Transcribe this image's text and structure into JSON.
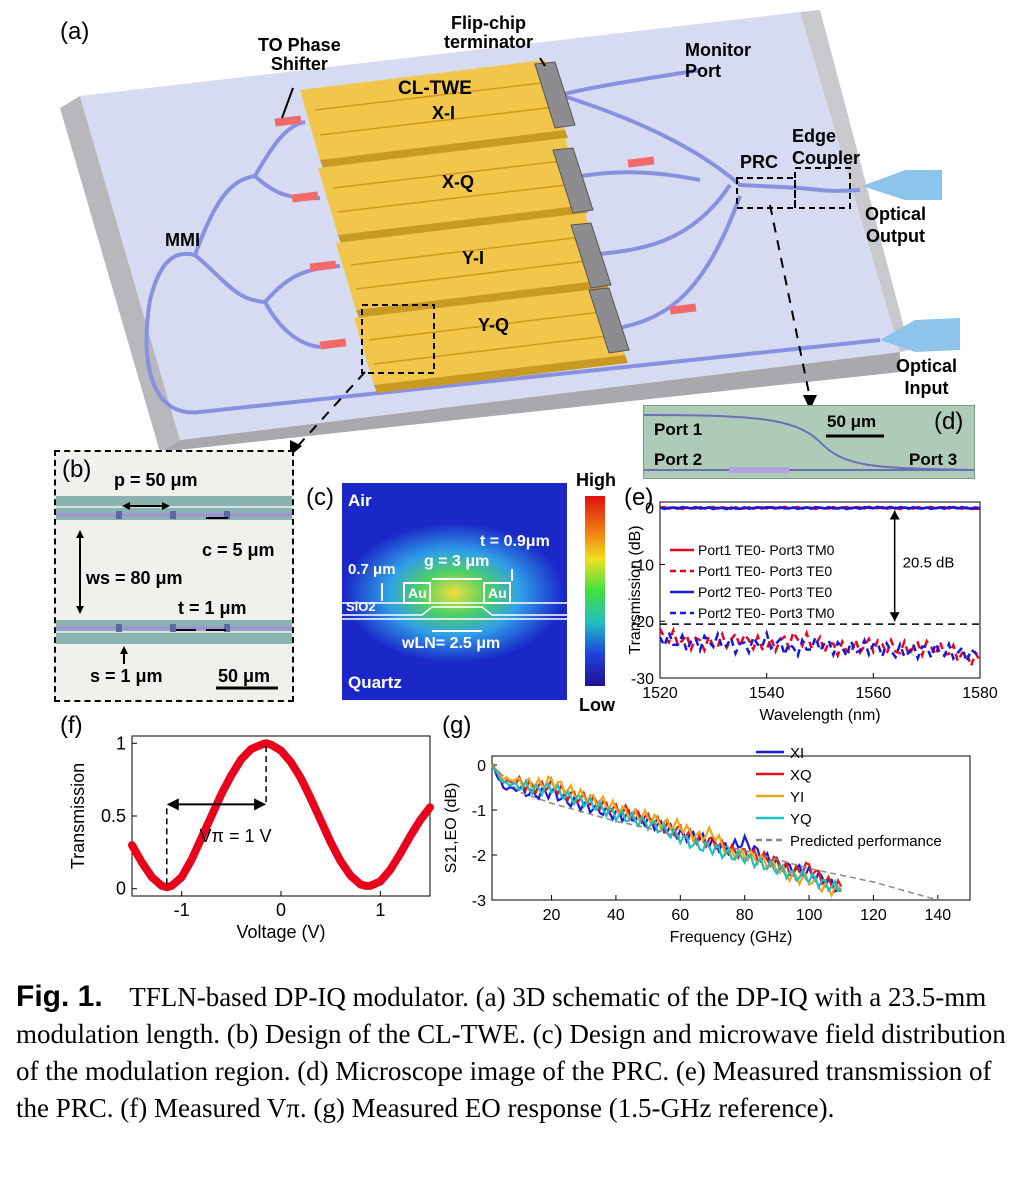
{
  "panel_a": {
    "label": "(a)",
    "to_phase_shifter": [
      "TO Phase",
      "Shifter"
    ],
    "flip_chip": [
      "Flip-chip",
      "terminator"
    ],
    "monitor_port": [
      "Monitor",
      "Port"
    ],
    "cl_twe": "CL-TWE",
    "mzm_labels": [
      "X-I",
      "X-Q",
      "Y-I",
      "Y-Q"
    ],
    "prc": "PRC",
    "edge_coupler": [
      "Edge",
      "Coupler"
    ],
    "optical_output": [
      "Optical",
      "Output"
    ],
    "optical_input": [
      "Optical",
      "Input"
    ],
    "mmi": "MMI"
  },
  "panel_b": {
    "label": "(b)",
    "p": "p = 50 μm",
    "c": "c = 5 μm",
    "ws": "ws = 80 μm",
    "t": "t = 1 μm",
    "s": "s = 1 μm",
    "scale": "50 μm"
  },
  "panel_c": {
    "label": "(c)",
    "air": "Air",
    "quartz": "Quartz",
    "sio2": "SiO2",
    "au": "Au",
    "dim_07": "0.7 μm",
    "g": "g = 3 μm",
    "t": "t = 0.9μm",
    "wln": "wLN= 2.5 μm",
    "high": "High",
    "low": "Low"
  },
  "panel_d": {
    "label": "(d)",
    "port1": "Port 1",
    "port2": "Port 2",
    "port3": "Port 3",
    "scale": "50 μm"
  },
  "panel_e": {
    "label": "(e)",
    "annotation": "20.5 dB"
  },
  "panel_f": {
    "label": "(f)",
    "annotation": "Vπ = 1 V"
  },
  "panel_g": {
    "label": "(g)"
  },
  "caption": {
    "fig": "Fig. 1.",
    "text": "TFLN-based DP-IQ modulator. (a) 3D schematic of the DP-IQ with a 23.5-mm modulation length. (b) Design of the CL-TWE. (c) Design and microwave field distribution of the modulation region. (d) Microscope image of the PRC. (e) Measured transmission of the PRC. (f) Measured Vπ. (g) Measured EO response (1.5-GHz reference)."
  },
  "chart_data": [
    {
      "id": "e",
      "type": "line",
      "xlabel": "Wavelength (nm)",
      "ylabel": "Transmission (dB)",
      "xlim": [
        1520,
        1580
      ],
      "ylim": [
        -30,
        1
      ],
      "xticks": [
        1520,
        1540,
        1560,
        1580
      ],
      "yticks": [
        0,
        -10,
        -20,
        -30
      ],
      "legend": "center-left",
      "series": [
        {
          "name": "Port1 TE0- Port3 TM0",
          "color": "#e8001c",
          "dash": "solid",
          "level": 0.0,
          "x": [
            1520,
            1525,
            1530,
            1535,
            1540,
            1545,
            1550,
            1555,
            1560,
            1565,
            1570,
            1575,
            1580
          ],
          "values": [
            0.0,
            -0.1,
            0.0,
            -0.1,
            0.0,
            0.0,
            -0.1,
            0.0,
            0.0,
            -0.1,
            0.0,
            0.0,
            -0.2
          ]
        },
        {
          "name": "Port1 TE0- Port3 TE0",
          "color": "#e8001c",
          "dash": "dashed",
          "level": -23.5,
          "x": [
            1520,
            1525,
            1530,
            1535,
            1540,
            1545,
            1550,
            1555,
            1560,
            1565,
            1570,
            1575,
            1580
          ],
          "values": [
            -22.5,
            -23.5,
            -24.0,
            -23.0,
            -24.5,
            -23.0,
            -24.0,
            -25.0,
            -24.0,
            -25.0,
            -24.5,
            -25.5,
            -27.0
          ]
        },
        {
          "name": "Port2 TE0- Port3 TE0",
          "color": "#1418d9",
          "dash": "solid",
          "level": 0.0,
          "x": [
            1520,
            1525,
            1530,
            1535,
            1540,
            1545,
            1550,
            1555,
            1560,
            1565,
            1570,
            1575,
            1580
          ],
          "values": [
            -0.1,
            0.0,
            -0.1,
            -0.1,
            0.0,
            -0.1,
            0.0,
            -0.1,
            0.0,
            0.0,
            -0.1,
            0.0,
            -0.1
          ]
        },
        {
          "name": "Port2 TE0- Port3 TM0",
          "color": "#1418d9",
          "dash": "dashed",
          "level": -23.5,
          "x": [
            1520,
            1525,
            1530,
            1535,
            1540,
            1545,
            1550,
            1555,
            1560,
            1565,
            1570,
            1575,
            1580
          ],
          "values": [
            -23.0,
            -24.0,
            -23.5,
            -24.5,
            -23.5,
            -25.0,
            -24.0,
            -25.0,
            -24.5,
            -25.5,
            -25.0,
            -25.5,
            -26.0
          ]
        },
        {
          "name": "",
          "color": "#000000",
          "dash": "dashed",
          "x": [
            1520,
            1580
          ],
          "values": [
            -20.5,
            -20.5
          ]
        }
      ]
    },
    {
      "id": "f",
      "type": "scatter",
      "xlabel": "Voltage (V)",
      "ylabel": "Transmission",
      "xlim": [
        -1.5,
        1.5
      ],
      "ylim": [
        -0.05,
        1.05
      ],
      "xticks": [
        -1,
        0,
        1
      ],
      "yticks": [
        0,
        0.5,
        1
      ],
      "series": [
        {
          "name": "",
          "color": "#e8001c",
          "x": [
            -1.5,
            -1.4,
            -1.3,
            -1.2,
            -1.15,
            -1.1,
            -1.0,
            -0.9,
            -0.8,
            -0.7,
            -0.6,
            -0.5,
            -0.4,
            -0.3,
            -0.2,
            -0.15,
            -0.1,
            0.0,
            0.1,
            0.2,
            0.3,
            0.4,
            0.5,
            0.6,
            0.7,
            0.8,
            0.85,
            0.9,
            1.0,
            1.1,
            1.2,
            1.3,
            1.4,
            1.5
          ],
          "values": [
            0.3,
            0.18,
            0.08,
            0.02,
            0.01,
            0.02,
            0.08,
            0.2,
            0.35,
            0.5,
            0.65,
            0.78,
            0.89,
            0.96,
            0.99,
            1.0,
            0.99,
            0.95,
            0.87,
            0.76,
            0.62,
            0.47,
            0.32,
            0.19,
            0.09,
            0.03,
            0.02,
            0.02,
            0.05,
            0.13,
            0.24,
            0.36,
            0.47,
            0.56
          ]
        }
      ]
    },
    {
      "id": "g",
      "type": "line",
      "xlabel": "Frequency (GHz)",
      "ylabel": "S21,EO (dB)",
      "xlim": [
        1.5,
        150
      ],
      "ylim": [
        -3,
        0.2
      ],
      "xticks": [
        20,
        40,
        60,
        80,
        100,
        120,
        140
      ],
      "yticks": [
        0,
        -1,
        -2,
        -3
      ],
      "legend": "top-right",
      "series": [
        {
          "name": "XI",
          "color": "#1a1adc",
          "x": [
            1.5,
            5,
            10,
            15,
            20,
            25,
            30,
            35,
            40,
            45,
            50,
            55,
            60,
            65,
            70,
            75,
            80,
            85,
            90,
            95,
            100,
            105,
            110
          ],
          "values": [
            0,
            -0.5,
            -0.55,
            -0.65,
            -0.6,
            -0.8,
            -0.9,
            -1.0,
            -1.1,
            -1.15,
            -1.25,
            -1.4,
            -1.55,
            -1.6,
            -1.75,
            -1.85,
            -1.7,
            -2.0,
            -2.2,
            -2.3,
            -2.4,
            -2.55,
            -2.8
          ]
        },
        {
          "name": "XQ",
          "color": "#e01818",
          "x": [
            1.5,
            5,
            10,
            15,
            20,
            25,
            30,
            35,
            40,
            45,
            50,
            55,
            60,
            65,
            70,
            75,
            80,
            85,
            90,
            95,
            100,
            105,
            110
          ],
          "values": [
            0,
            -0.35,
            -0.4,
            -0.5,
            -0.45,
            -0.65,
            -0.75,
            -0.85,
            -1.0,
            -1.05,
            -1.2,
            -1.35,
            -1.45,
            -1.65,
            -1.7,
            -1.9,
            -1.95,
            -2.05,
            -2.15,
            -2.4,
            -2.25,
            -2.6,
            -2.7
          ]
        },
        {
          "name": "YI",
          "color": "#e8a81c",
          "x": [
            1.5,
            5,
            10,
            15,
            20,
            25,
            30,
            35,
            40,
            45,
            50,
            55,
            60,
            65,
            70,
            75,
            80,
            85,
            90,
            95,
            100,
            105,
            110
          ],
          "values": [
            0,
            -0.3,
            -0.35,
            -0.45,
            -0.35,
            -0.55,
            -0.7,
            -0.8,
            -0.95,
            -1.1,
            -1.15,
            -1.3,
            -1.35,
            -1.6,
            -1.5,
            -1.95,
            -2.0,
            -2.1,
            -2.3,
            -2.5,
            -2.55,
            -2.75,
            -2.8
          ]
        },
        {
          "name": "YQ",
          "color": "#1fc0c4",
          "x": [
            1.5,
            5,
            10,
            15,
            20,
            25,
            30,
            35,
            40,
            45,
            50,
            55,
            60,
            65,
            70,
            75,
            80,
            85,
            90,
            95,
            100,
            105,
            110
          ],
          "values": [
            0,
            -0.4,
            -0.45,
            -0.55,
            -0.5,
            -0.7,
            -0.8,
            -0.95,
            -1.1,
            -1.2,
            -1.3,
            -1.45,
            -1.6,
            -1.8,
            -1.85,
            -2.0,
            -2.05,
            -2.2,
            -2.3,
            -2.45,
            -2.5,
            -2.65,
            -2.75
          ]
        },
        {
          "name": "Predicted performance",
          "color": "#888888",
          "dash": "dashed",
          "x": [
            1.5,
            10,
            20,
            30,
            40,
            50,
            60,
            70,
            80,
            90,
            100,
            110,
            120,
            130,
            140
          ],
          "values": [
            0,
            -0.6,
            -0.85,
            -1.05,
            -1.25,
            -1.4,
            -1.6,
            -1.75,
            -1.9,
            -2.1,
            -2.3,
            -2.45,
            -2.6,
            -2.8,
            -3.0
          ]
        }
      ]
    }
  ]
}
